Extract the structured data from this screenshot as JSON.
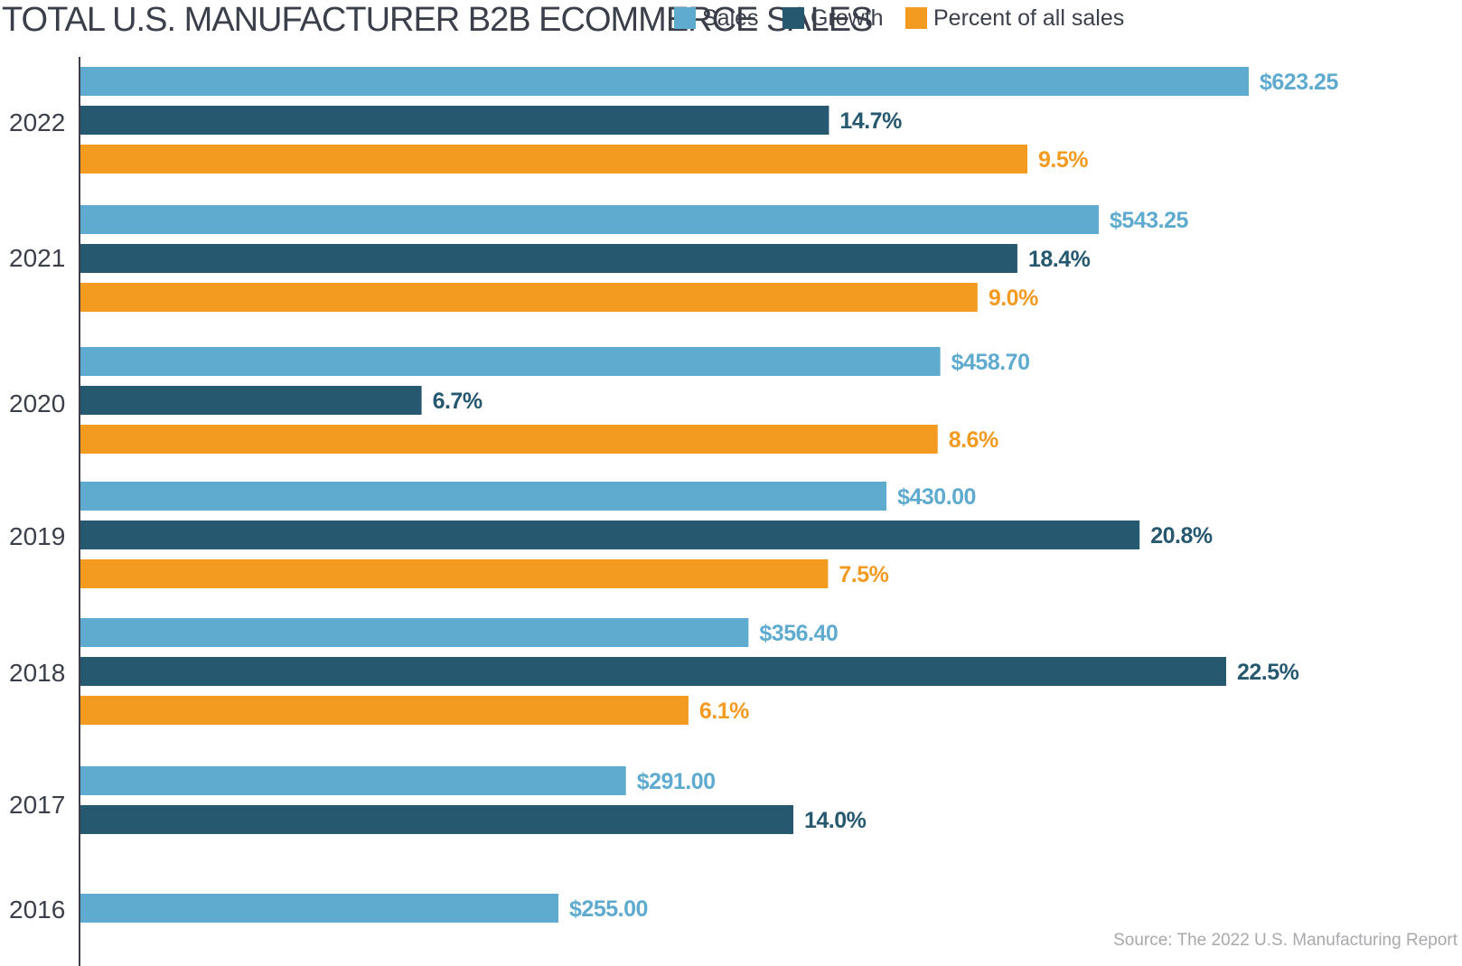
{
  "chart_data": {
    "type": "bar",
    "orientation": "horizontal",
    "title": "TOTAL U.S. MANUFACTURER B2B ECOMMERCE SALES",
    "source": "Source: The 2022 U.S. Manufacturing Report",
    "categories": [
      "2022",
      "2021",
      "2020",
      "2019",
      "2018",
      "2017",
      "2016"
    ],
    "series": [
      {
        "name": "Sales",
        "color": "#5eabcf",
        "values": [
          623.25,
          543.25,
          458.7,
          430.0,
          356.4,
          291.0,
          255.0
        ],
        "labels": [
          "$623.25",
          "$543.25",
          "$458.70",
          "$430.00",
          "$356.40",
          "$291.00",
          "$255.00"
        ]
      },
      {
        "name": "Growth",
        "color": "#26596f",
        "values": [
          14.7,
          18.4,
          6.7,
          20.8,
          22.5,
          14.0,
          null
        ],
        "labels": [
          "14.7%",
          "18.4%",
          "6.7%",
          "20.8%",
          "22.5%",
          "14.0%",
          null
        ]
      },
      {
        "name": "Percent of all sales",
        "color": "#f39a21",
        "values": [
          9.5,
          9.0,
          8.6,
          7.5,
          6.1,
          null,
          null
        ],
        "labels": [
          "9.5%",
          "9.0%",
          "8.6%",
          "7.5%",
          "6.1%",
          null,
          null
        ]
      }
    ],
    "legend": "top"
  }
}
